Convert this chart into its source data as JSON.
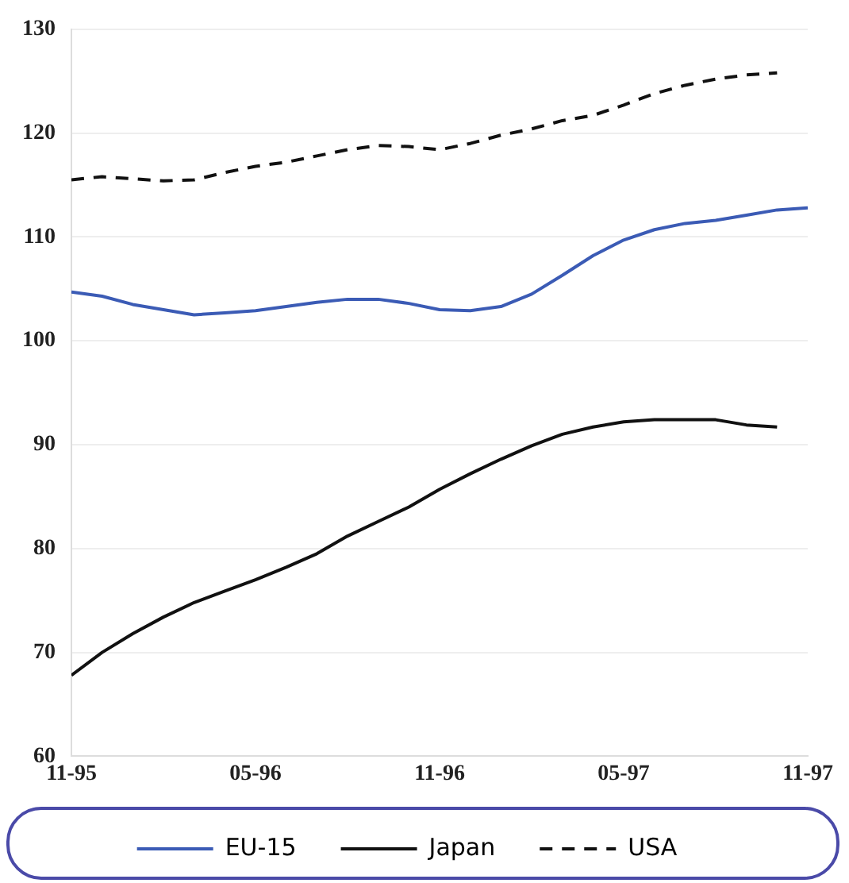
{
  "chart_data": {
    "type": "line",
    "x": [
      "1995-11",
      "1995-12",
      "1996-01",
      "1996-02",
      "1996-03",
      "1996-04",
      "1996-05",
      "1996-06",
      "1996-07",
      "1996-08",
      "1996-09",
      "1996-10",
      "1996-11",
      "1996-12",
      "1997-01",
      "1997-02",
      "1997-03",
      "1997-04",
      "1997-05",
      "1997-06",
      "1997-07",
      "1997-08",
      "1997-09",
      "1997-10",
      "1997-11"
    ],
    "series": [
      {
        "name": "EU-15",
        "color": "#3b5bb5",
        "line_style": "solid",
        "values": [
          104.7,
          104.3,
          103.5,
          103.0,
          102.5,
          102.7,
          102.9,
          103.3,
          103.7,
          104.0,
          104.0,
          103.6,
          103.0,
          102.9,
          103.3,
          104.5,
          106.3,
          108.2,
          109.7,
          110.7,
          111.3,
          111.6,
          112.1,
          112.6,
          112.8
        ]
      },
      {
        "name": "Japan",
        "color": "#111111",
        "line_style": "solid",
        "values": [
          67.8,
          70.0,
          71.8,
          73.4,
          74.8,
          75.9,
          77.0,
          78.2,
          79.5,
          81.2,
          82.6,
          84.0,
          85.7,
          87.2,
          88.6,
          89.9,
          91.0,
          91.7,
          92.2,
          92.4,
          92.4,
          92.4,
          91.9,
          91.7,
          null
        ]
      },
      {
        "name": "USA",
        "color": "#111111",
        "line_style": "dashed",
        "values": [
          115.5,
          115.8,
          115.6,
          115.4,
          115.5,
          116.2,
          116.8,
          117.2,
          117.8,
          118.4,
          118.8,
          118.7,
          118.4,
          119.0,
          119.8,
          120.4,
          121.2,
          121.7,
          122.7,
          123.8,
          124.6,
          125.2,
          125.6,
          125.8,
          null
        ]
      }
    ],
    "xlim": [
      "1995-11",
      "1997-11"
    ],
    "xticks": [
      {
        "value": "1995-11",
        "label": "11-95"
      },
      {
        "value": "1996-05",
        "label": "05-96"
      },
      {
        "value": "1996-11",
        "label": "11-96"
      },
      {
        "value": "1997-05",
        "label": "05-97"
      },
      {
        "value": "1997-11",
        "label": "11-97"
      }
    ],
    "ylim": [
      60,
      130
    ],
    "yticks": [
      60,
      70,
      80,
      90,
      100,
      110,
      120,
      130
    ],
    "grid": "y",
    "legend": "bottom",
    "marker": "none"
  }
}
